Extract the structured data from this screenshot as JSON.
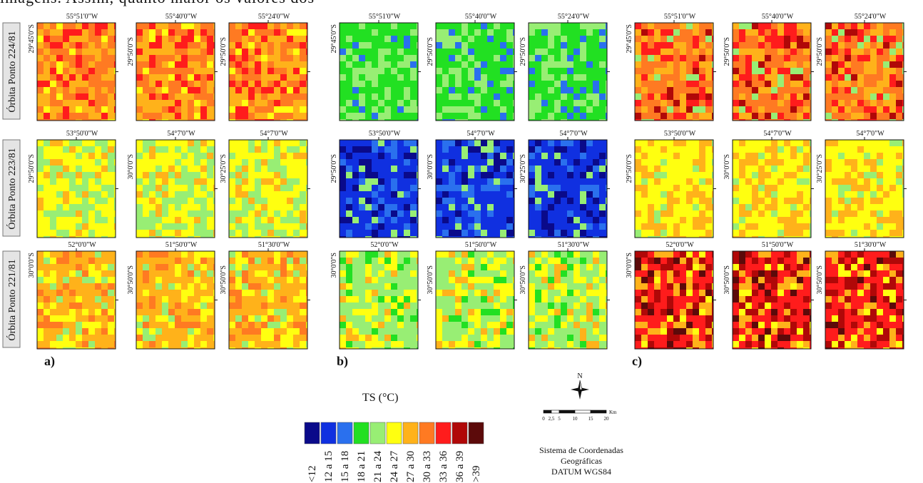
{
  "header": {
    "text": "imagens. Assim, quanto maior os valores dos"
  },
  "row_labels": [
    "Órbita Ponto 224/81",
    "Órbita Ponto 223/81",
    "Órbita Ponto 221/81"
  ],
  "panels": [
    {
      "letter": "a)",
      "rows": [
        {
          "maps": [
            {
              "lon": "55°51'0\"W",
              "lat": "29°45'0\"S"
            },
            {
              "lon": "55°40'0\"W",
              "lat": "29°50'0\"S"
            },
            {
              "lon": "55°24'0\"W",
              "lat": "29°50'0\"S"
            }
          ]
        },
        {
          "maps": [
            {
              "lon": "53°50'0\"W",
              "lat": "29°50'0\"S"
            },
            {
              "lon": "54°7'0\"W",
              "lat": "30°0'0\"S"
            },
            {
              "lon": "54°7'0\"W",
              "lat": "30°25'0\"S"
            }
          ]
        },
        {
          "maps": [
            {
              "lon": "52°0'0\"W",
              "lat": "30°0'0\"S"
            },
            {
              "lon": "51°50'0\"W",
              "lat": "30°50'0\"S"
            },
            {
              "lon": "51°30'0\"W",
              "lat": "30°50'0\"S"
            }
          ]
        }
      ]
    },
    {
      "letter": "b)",
      "rows": [
        {
          "maps": [
            {
              "lon": "55°51'0\"W",
              "lat": "29°45'0\"S"
            },
            {
              "lon": "55°40'0\"W",
              "lat": "29°50'0\"S"
            },
            {
              "lon": "55°24'0\"W",
              "lat": "29°50'0\"S"
            }
          ]
        },
        {
          "maps": [
            {
              "lon": "53°50'0\"W",
              "lat": "29°50'0\"S"
            },
            {
              "lon": "54°7'0\"W",
              "lat": "30°0'0\"S"
            },
            {
              "lon": "54°7'0\"W",
              "lat": "30°25'0\"S"
            }
          ]
        },
        {
          "maps": [
            {
              "lon": "52°0'0\"W",
              "lat": "30°0'0\"S"
            },
            {
              "lon": "51°50'0\"W",
              "lat": "30°50'0\"S"
            },
            {
              "lon": "51°30'0\"W",
              "lat": "30°50'0\"S"
            }
          ]
        }
      ]
    },
    {
      "letter": "c)",
      "rows": [
        {
          "maps": [
            {
              "lon": "55°51'0\"W",
              "lat": "29°45'0\"S"
            },
            {
              "lon": "55°40'0\"W",
              "lat": "29°50'0\"S"
            },
            {
              "lon": "55°24'0\"W",
              "lat": "29°50'0\"S"
            }
          ]
        },
        {
          "maps": [
            {
              "lon": "53°50'0\"W",
              "lat": "29°50'0\"S"
            },
            {
              "lon": "54°7'0\"W",
              "lat": "30°0'0\"S"
            },
            {
              "lon": "54°7'0\"W",
              "lat": "30°25'0\"S"
            }
          ]
        },
        {
          "maps": [
            {
              "lon": "52°0'0\"W",
              "lat": "30°0'0\"S"
            },
            {
              "lon": "51°50'0\"W",
              "lat": "30°50'0\"S"
            },
            {
              "lon": "51°30'0\"W",
              "lat": "30°50'0\"S"
            }
          ]
        }
      ]
    }
  ],
  "legend": {
    "title": "TS (°C)",
    "classes": [
      {
        "label": "<12",
        "color": "#0a0a8a"
      },
      {
        "label": "12 a 15",
        "color": "#1030e0"
      },
      {
        "label": "15 a 18",
        "color": "#2a70ee"
      },
      {
        "label": "18 a 21",
        "color": "#22e022"
      },
      {
        "label": "21 a 24",
        "color": "#98ee74"
      },
      {
        "label": "24 a 27",
        "color": "#ffff10"
      },
      {
        "label": "27 a 30",
        "color": "#ffb21a"
      },
      {
        "label": "30 a 33",
        "color": "#ff7a22"
      },
      {
        "label": "33 a 36",
        "color": "#ff1c1c"
      },
      {
        "label": "36 a 39",
        "color": "#b00808"
      },
      {
        "label": ">39",
        "color": "#5c0a0a"
      }
    ]
  },
  "scale_bar": {
    "labels": [
      "0",
      "2,5",
      "5",
      "10",
      "15",
      "20"
    ],
    "unit": "Km"
  },
  "north": "N",
  "coordinate_system": [
    "Sistema de Coordenadas",
    "Geográficas",
    "DATUM WGS84"
  ]
}
